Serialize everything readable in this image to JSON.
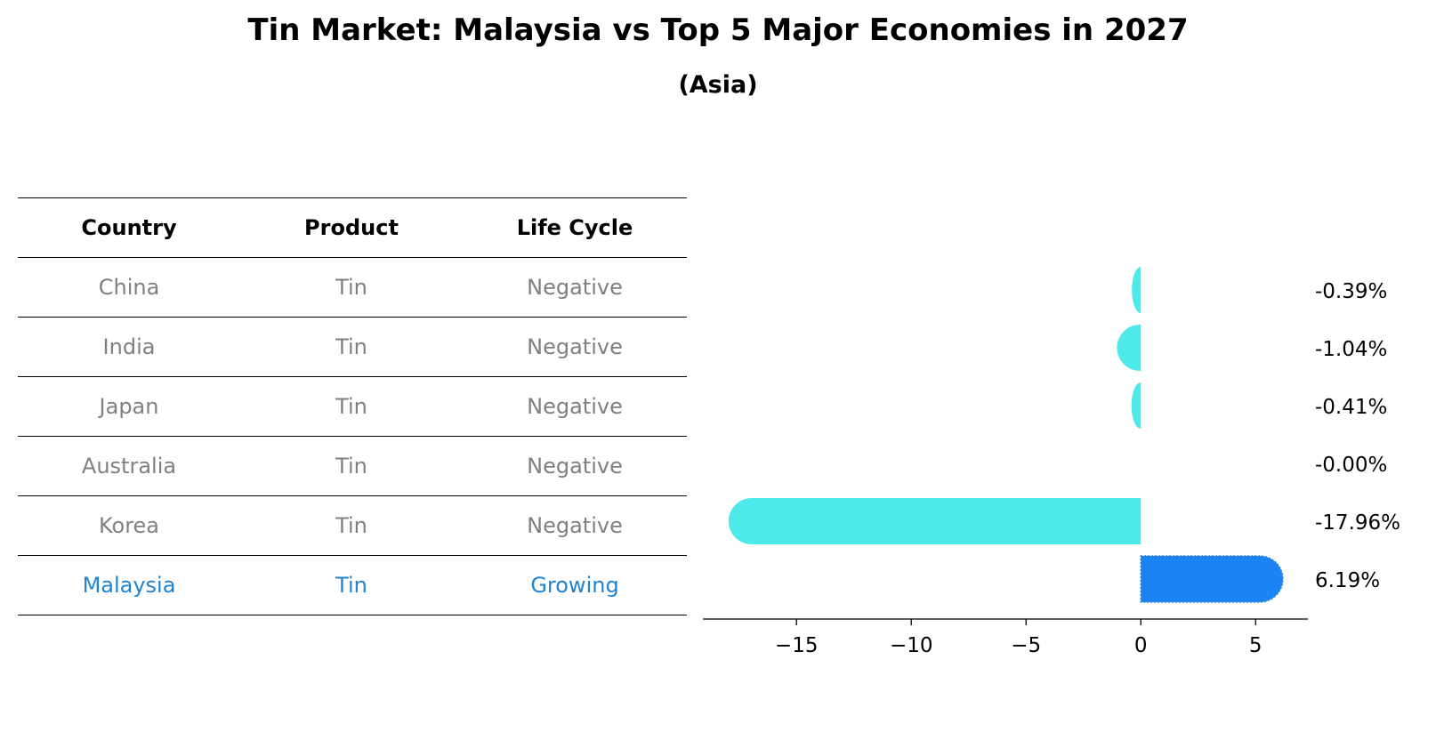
{
  "title": "Tin Market: Malaysia vs Top 5 Major Economies in 2027",
  "subtitle": "(Asia)",
  "table": {
    "headers": [
      "Country",
      "Product",
      "Life Cycle"
    ],
    "rows": [
      {
        "country": "China",
        "product": "Tin",
        "life_cycle": "Negative"
      },
      {
        "country": "India",
        "product": "Tin",
        "life_cycle": "Negative"
      },
      {
        "country": "Japan",
        "product": "Tin",
        "life_cycle": "Negative"
      },
      {
        "country": "Australia",
        "product": "Tin",
        "life_cycle": "Negative"
      },
      {
        "country": "Korea",
        "product": "Tin",
        "life_cycle": "Negative"
      },
      {
        "country": "Malaysia",
        "product": "Tin",
        "life_cycle": "Growing"
      }
    ]
  },
  "colors": {
    "negative_bar": "#4eeaea",
    "highlight_bar": "#1a84f5",
    "muted_text": "#808080",
    "highlight_text": "#1f84d4"
  },
  "chart_data": {
    "type": "bar",
    "orientation": "horizontal",
    "categories": [
      "China",
      "India",
      "Japan",
      "Australia",
      "Korea",
      "Malaysia"
    ],
    "values": [
      -0.39,
      -1.04,
      -0.41,
      -0.0,
      -17.96,
      6.19
    ],
    "value_labels": [
      "-0.39%",
      "-1.04%",
      "-0.41%",
      "-0.00%",
      "-17.96%",
      "6.19%"
    ],
    "highlight": "Malaysia",
    "xlim": [
      -19,
      7.2
    ],
    "xticks": [
      -15,
      -10,
      -5,
      0,
      5
    ],
    "xtick_labels": [
      "−15",
      "−10",
      "−5",
      "0",
      "5"
    ],
    "grid": false,
    "xlabel": "",
    "ylabel": ""
  }
}
